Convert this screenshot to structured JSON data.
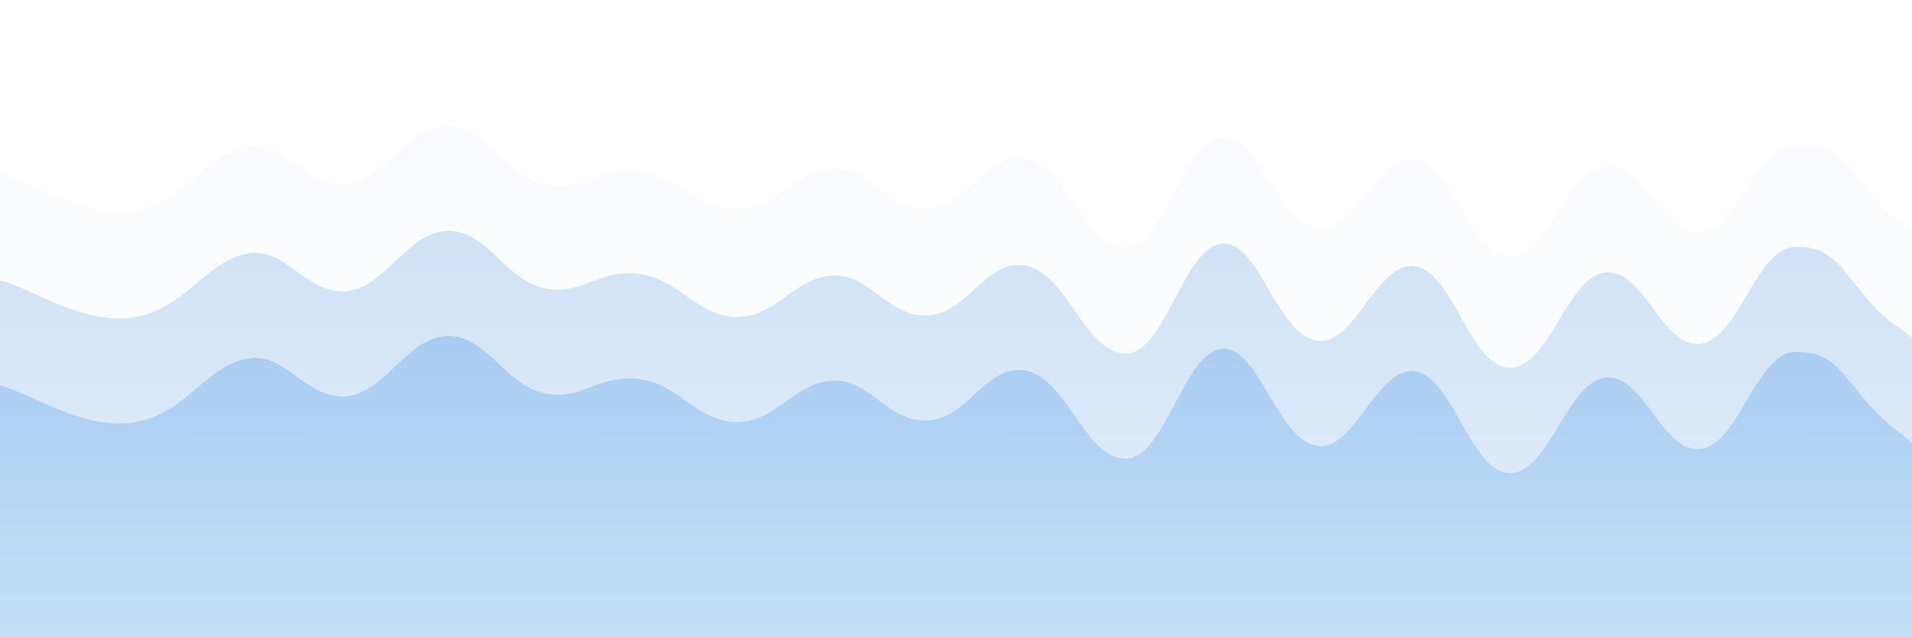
{
  "background": {
    "page_color": "#ffffff",
    "layers": [
      {
        "name": "back-wave",
        "top_color": "#f9fbfe",
        "bottom_color": "#fdfefe"
      },
      {
        "name": "middle-wave",
        "top_color": "#cfe2f6",
        "bottom_color": "#e6f0fa"
      },
      {
        "name": "front-wave",
        "top_color": "#a8ccf2",
        "bottom_color": "#c3e0f7"
      }
    ]
  }
}
